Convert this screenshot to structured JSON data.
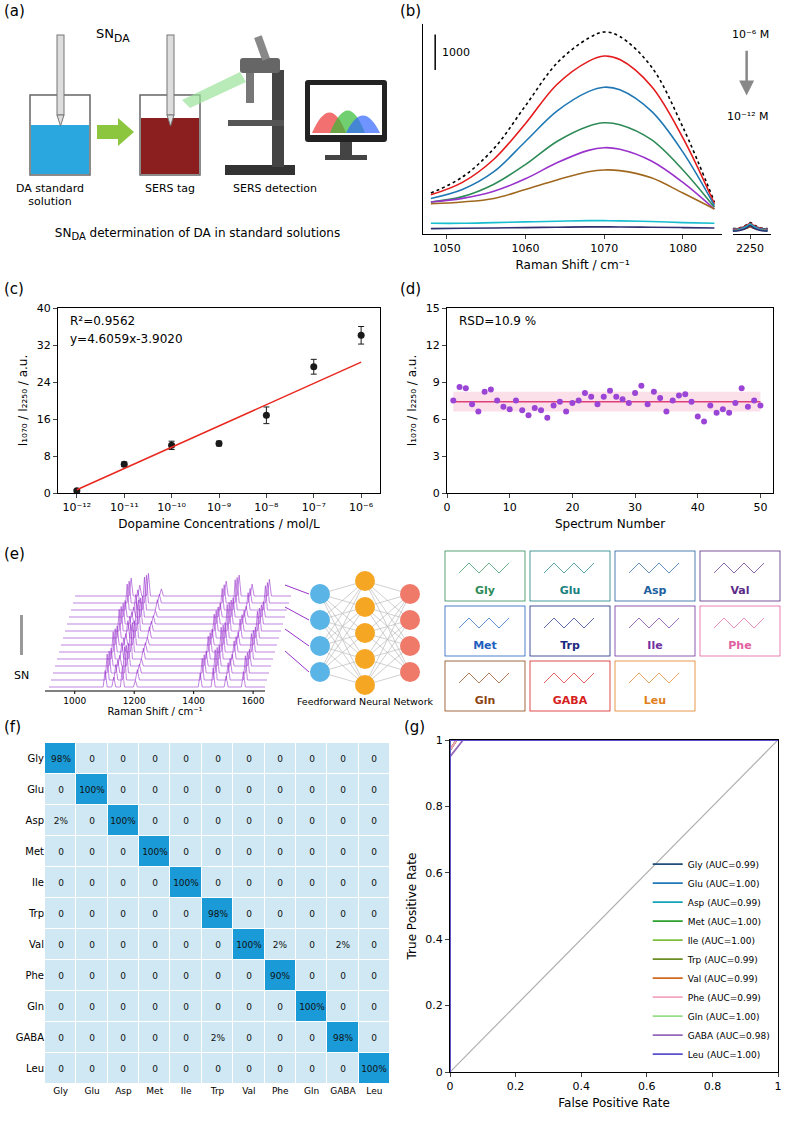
{
  "diagrams": {
    "a": {
      "panel_label": "(a)",
      "pipette_label": {
        "text": "SN",
        "sub": "DA"
      },
      "steps": [
        "DA standard solution",
        "SERS tag",
        "SERS detection"
      ],
      "caption": [
        {
          "text": "SN"
        },
        {
          "text": "DA",
          "sub": true
        },
        {
          "text": " determination of DA in standard solutions"
        }
      ]
    },
    "e": {
      "panel_label": "(e)",
      "left_label": "SN",
      "x_label": "Raman Shift / cm⁻¹",
      "xlim": [
        900,
        1640
      ],
      "xticks": [
        1000,
        1200,
        1400,
        1600
      ],
      "network_label": "Feedforward Neural Network",
      "classes": [
        {
          "name": "Gly",
          "color": "#2e8b57"
        },
        {
          "name": "Glu",
          "color": "#1a7f7f"
        },
        {
          "name": "Asp",
          "color": "#2060a0"
        },
        {
          "name": "Val",
          "color": "#5b2a86"
        },
        {
          "name": "Met",
          "color": "#1f5fbf"
        },
        {
          "name": "Trp",
          "color": "#1a2a80"
        },
        {
          "name": "Ile",
          "color": "#7030a0"
        },
        {
          "name": "Phe",
          "color": "#e060a0"
        },
        {
          "name": "Gln",
          "color": "#8b4513"
        },
        {
          "name": "GABA",
          "color": "#d62020"
        },
        {
          "name": "Leu",
          "color": "#e08020"
        }
      ]
    }
  },
  "chart_data": [
    {
      "panel_label": "(b)",
      "type": "line",
      "x_label": "Raman Shift / cm⁻¹",
      "tick_labels": "x",
      "xlim": [
        1047,
        1085
      ],
      "xticks": [
        1050,
        1060,
        1070,
        1080
      ],
      "x2lim": [
        2245,
        2256
      ],
      "x2ticks": [
        2250
      ],
      "ylim": [
        0,
        5900
      ],
      "scale_bar": {
        "value": 1000,
        "label": "1000"
      },
      "annotations": [
        "10⁻⁶ M",
        "10⁻¹² M"
      ],
      "series": [
        {
          "color": "#000000",
          "line_style": "dotted",
          "x": [
            1048,
            1052,
            1056,
            1060,
            1064,
            1068,
            1070,
            1072,
            1076,
            1080,
            1084,
            2245,
            2247,
            2249,
            2250,
            2251,
            2253,
            2255
          ],
          "values": [
            1150,
            1600,
            2400,
            3600,
            4800,
            5500,
            5675,
            5550,
            4700,
            3000,
            900,
            150,
            170,
            260,
            320,
            260,
            170,
            150
          ]
        },
        {
          "color": "#e41a1c",
          "line_style": "solid",
          "x": [
            1048,
            1052,
            1056,
            1060,
            1064,
            1068,
            1070,
            1072,
            1076,
            1080,
            1084,
            2245,
            2247,
            2249,
            2250,
            2251,
            2253,
            2255
          ],
          "values": [
            1100,
            1450,
            2100,
            3100,
            4200,
            4850,
            5000,
            4900,
            4150,
            2700,
            850,
            140,
            160,
            240,
            300,
            240,
            160,
            140
          ]
        },
        {
          "color": "#1f78b4",
          "line_style": "solid",
          "x": [
            1048,
            1052,
            1056,
            1060,
            1064,
            1068,
            1070,
            1072,
            1076,
            1080,
            1084,
            2245,
            2247,
            2249,
            2250,
            2251,
            2253,
            2255
          ],
          "values": [
            1000,
            1250,
            1750,
            2600,
            3450,
            4000,
            4125,
            4050,
            3450,
            2300,
            800,
            130,
            150,
            220,
            270,
            220,
            150,
            130
          ]
        },
        {
          "color": "#2e8b57",
          "line_style": "solid",
          "x": [
            1048,
            1052,
            1056,
            1060,
            1064,
            1068,
            1070,
            1072,
            1076,
            1080,
            1084,
            2245,
            2247,
            2249,
            2250,
            2251,
            2253,
            2255
          ],
          "values": [
            900,
            1050,
            1400,
            1950,
            2600,
            3030,
            3125,
            3070,
            2650,
            1800,
            750,
            120,
            140,
            200,
            250,
            200,
            140,
            120
          ]
        },
        {
          "color": "#9933cc",
          "line_style": "solid",
          "x": [
            1048,
            1052,
            1056,
            1060,
            1064,
            1068,
            1070,
            1072,
            1076,
            1080,
            1084,
            2245,
            2247,
            2249,
            2250,
            2251,
            2253,
            2255
          ],
          "values": [
            900,
            1000,
            1200,
            1550,
            2000,
            2350,
            2425,
            2380,
            2050,
            1450,
            700,
            110,
            130,
            180,
            220,
            180,
            130,
            110
          ]
        },
        {
          "color": "#a0681e",
          "line_style": "solid",
          "x": [
            1048,
            1052,
            1056,
            1060,
            1064,
            1068,
            1070,
            1072,
            1076,
            1080,
            1084,
            2245,
            2247,
            2249,
            2250,
            2251,
            2253,
            2255
          ],
          "values": [
            850,
            900,
            1000,
            1250,
            1520,
            1750,
            1800,
            1780,
            1580,
            1150,
            700,
            100,
            120,
            160,
            200,
            160,
            120,
            100
          ]
        },
        {
          "color": "#17becf",
          "line_style": "solid",
          "x": [
            1048,
            1052,
            1056,
            1060,
            1064,
            1068,
            1070,
            1072,
            1076,
            1080,
            1084,
            2245,
            2247,
            2249,
            2250,
            2251,
            2253,
            2255
          ],
          "values": [
            300,
            300,
            320,
            340,
            360,
            375,
            375,
            370,
            350,
            320,
            300,
            90,
            110,
            200,
            280,
            200,
            110,
            90
          ]
        },
        {
          "color": "#2f2f6f",
          "line_style": "solid",
          "x": [
            1048,
            1052,
            1056,
            1060,
            1064,
            1068,
            1070,
            1072,
            1076,
            1080,
            1084,
            2245,
            2247,
            2249,
            2250,
            2251,
            2253,
            2255
          ],
          "values": [
            150,
            160,
            170,
            180,
            190,
            200,
            200,
            198,
            190,
            180,
            170,
            80,
            100,
            170,
            240,
            170,
            100,
            80
          ]
        }
      ]
    },
    {
      "panel_label": "(c)",
      "type": "scatter",
      "log": "x",
      "x_label": "Dopamine Concentrations / mol/L",
      "y_label": "I₁₀₇₀ / I₂₂₅₀ / a.u.",
      "xlim": [
        4e-13,
        2.5e-06
      ],
      "xticks": [
        {
          "value": 1e-12,
          "label": "10⁻¹²"
        },
        {
          "value": 1e-11,
          "label": "10⁻¹¹"
        },
        {
          "value": 1e-10,
          "label": "10⁻¹⁰"
        },
        {
          "value": 1e-09,
          "label": "10⁻⁹"
        },
        {
          "value": 1e-08,
          "label": "10⁻⁸"
        },
        {
          "value": 1e-07,
          "label": "10⁻⁷"
        },
        {
          "value": 1e-06,
          "label": "10⁻⁶"
        }
      ],
      "ylim": [
        0,
        40
      ],
      "yticks": [
        0,
        8,
        16,
        24,
        32,
        40
      ],
      "annotations": [
        "R²=0.9562",
        "y=4.6059x-3.9020"
      ],
      "series": [
        {
          "type": "scatter",
          "color": "#1a1a1a",
          "marker": "circle",
          "x": [
            1e-12,
            1e-11,
            1e-10,
            1e-09,
            1e-08,
            1e-07,
            1e-06
          ],
          "values": [
            0.5,
            6.2,
            10.3,
            10.7,
            16.8,
            27.3,
            34.1
          ],
          "errors": [
            0.3,
            0.5,
            0.9,
            0.5,
            1.8,
            1.6,
            1.9
          ]
        },
        {
          "type": "line",
          "color": "#e8281e",
          "x": [
            1e-12,
            1e-06
          ],
          "values": [
            0.7,
            28.3
          ]
        }
      ]
    },
    {
      "panel_label": "(d)",
      "type": "scatter",
      "x_label": "Spectrum Number",
      "y_label": "I₁₀₇₀ / I₂₂₅₀ / a.u.",
      "xlim": [
        0,
        52
      ],
      "xticks": [
        0,
        10,
        20,
        30,
        40,
        50
      ],
      "ylim": [
        0,
        15
      ],
      "yticks": [
        0,
        3,
        6,
        9,
        12,
        15
      ],
      "annotations": [
        "RSD=10.9 %"
      ],
      "color": "#9b45d6",
      "marker": "circle",
      "x": [
        1,
        2,
        3,
        4,
        5,
        6,
        7,
        8,
        9,
        10,
        11,
        12,
        13,
        14,
        15,
        16,
        17,
        18,
        19,
        20,
        21,
        22,
        23,
        24,
        25,
        26,
        27,
        28,
        29,
        30,
        31,
        32,
        33,
        34,
        35,
        36,
        37,
        38,
        39,
        40,
        41,
        42,
        43,
        44,
        45,
        46,
        47,
        48,
        49,
        50
      ],
      "values": [
        7.5,
        8.6,
        8.5,
        7.2,
        6.6,
        8.2,
        8.4,
        7.5,
        7.0,
        6.8,
        7.5,
        6.7,
        6.3,
        6.9,
        6.7,
        6.1,
        7.1,
        7.4,
        6.6,
        7.3,
        7.5,
        8.1,
        7.8,
        7.2,
        7.8,
        8.3,
        7.8,
        7.6,
        7.3,
        8.1,
        8.7,
        7.2,
        8.2,
        7.7,
        6.6,
        7.5,
        7.9,
        8.0,
        7.4,
        6.2,
        5.8,
        7.1,
        6.5,
        6.8,
        6.5,
        7.3,
        8.5,
        7.0,
        7.5,
        7.1
      ],
      "mean": 7.4,
      "band": [
        6.6,
        8.2
      ]
    },
    {
      "panel_label": "(f)",
      "type": "heatmap",
      "data_labels": true,
      "categories": [
        "Gly",
        "Glu",
        "Asp",
        "Met",
        "Ile",
        "Trp",
        "Val",
        "Phe",
        "Gln",
        "GABA",
        "Leu"
      ],
      "zlim": [
        0,
        100
      ],
      "cells": [
        [
          98,
          0,
          0,
          0,
          0,
          0,
          0,
          0,
          0,
          0,
          0
        ],
        [
          0,
          100,
          0,
          0,
          0,
          0,
          0,
          0,
          0,
          0,
          0
        ],
        [
          2,
          0,
          100,
          0,
          0,
          0,
          0,
          0,
          0,
          0,
          0
        ],
        [
          0,
          0,
          0,
          100,
          0,
          0,
          0,
          0,
          0,
          0,
          0
        ],
        [
          0,
          0,
          0,
          0,
          100,
          0,
          0,
          0,
          0,
          0,
          0
        ],
        [
          0,
          0,
          0,
          0,
          0,
          98,
          0,
          0,
          0,
          0,
          0
        ],
        [
          0,
          0,
          0,
          0,
          0,
          0,
          100,
          2,
          0,
          2,
          0
        ],
        [
          0,
          0,
          0,
          0,
          0,
          0,
          0,
          90,
          0,
          0,
          0
        ],
        [
          0,
          0,
          0,
          0,
          0,
          0,
          0,
          0,
          100,
          0,
          0
        ],
        [
          0,
          0,
          0,
          0,
          0,
          2,
          0,
          0,
          0,
          98,
          0
        ],
        [
          0,
          0,
          0,
          0,
          0,
          0,
          0,
          0,
          0,
          0,
          100
        ]
      ],
      "cell_labels": [
        [
          "98%",
          "0",
          "0",
          "0",
          "0",
          "0",
          "0",
          "0",
          "0",
          "0",
          "0"
        ],
        [
          "0",
          "100%",
          "0",
          "0",
          "0",
          "0",
          "0",
          "0",
          "0",
          "0",
          "0"
        ],
        [
          "2%",
          "0",
          "100%",
          "0",
          "0",
          "0",
          "0",
          "0",
          "0",
          "0",
          "0"
        ],
        [
          "0",
          "0",
          "0",
          "100%",
          "0",
          "0",
          "0",
          "0",
          "0",
          "0",
          "0"
        ],
        [
          "0",
          "0",
          "0",
          "0",
          "100%",
          "0",
          "0",
          "0",
          "0",
          "0",
          "0"
        ],
        [
          "0",
          "0",
          "0",
          "0",
          "0",
          "98%",
          "0",
          "0",
          "0",
          "0",
          "0"
        ],
        [
          "0",
          "0",
          "0",
          "0",
          "0",
          "0",
          "100%",
          "2%",
          "0",
          "2%",
          "0"
        ],
        [
          "0",
          "0",
          "0",
          "0",
          "0",
          "0",
          "0",
          "90%",
          "0",
          "0",
          "0"
        ],
        [
          "0",
          "0",
          "0",
          "0",
          "0",
          "0",
          "0",
          "0",
          "100%",
          "0",
          "0"
        ],
        [
          "0",
          "0",
          "0",
          "0",
          "0",
          "2%",
          "0",
          "0",
          "0",
          "98%",
          "0"
        ],
        [
          "0",
          "0",
          "0",
          "0",
          "0",
          "0",
          "0",
          "0",
          "0",
          "0",
          "100%"
        ]
      ]
    },
    {
      "panel_label": "(g)",
      "type": "line",
      "x_label": "False Positive Rate",
      "y_label": "True Positive Rate",
      "xlim": [
        0,
        1
      ],
      "xticks": [
        0,
        0.2,
        0.4,
        0.6,
        0.8,
        1
      ],
      "ylim": [
        0,
        1
      ],
      "yticks": [
        0,
        0.2,
        0.4,
        0.6,
        0.8,
        1
      ],
      "legend": "bottom right",
      "diagonal": {
        "x": [
          0,
          1
        ],
        "values": [
          0,
          1
        ],
        "color": "#b0b0b0"
      },
      "series": [
        {
          "name": "Gly (AUC=0.99)",
          "color": "#1f4e79",
          "x": [
            0,
            0,
            0.02,
            1
          ],
          "values": [
            0,
            0.97,
            1,
            1
          ]
        },
        {
          "name": "Glu (AUC=1.00)",
          "color": "#1f77b4",
          "x": [
            0,
            0,
            1
          ],
          "values": [
            0,
            1,
            1
          ]
        },
        {
          "name": "Asp (AUC=0.99)",
          "color": "#17a2b8",
          "x": [
            0,
            0,
            0.02,
            1
          ],
          "values": [
            0,
            0.97,
            1,
            1
          ]
        },
        {
          "name": "Met (AUC=1.00)",
          "color": "#2ca02c",
          "x": [
            0,
            0,
            1
          ],
          "values": [
            0,
            1,
            1
          ]
        },
        {
          "name": "Ile (AUC=1.00)",
          "color": "#7fbf3f",
          "x": [
            0,
            0,
            1
          ],
          "values": [
            0,
            1,
            1
          ]
        },
        {
          "name": "Trp (AUC=0.99)",
          "color": "#6b8e23",
          "x": [
            0,
            0,
            0.02,
            1
          ],
          "values": [
            0,
            0.97,
            1,
            1
          ]
        },
        {
          "name": "Val (AUC=0.99)",
          "color": "#d2691e",
          "x": [
            0,
            0,
            0.02,
            1
          ],
          "values": [
            0,
            0.97,
            1,
            1
          ]
        },
        {
          "name": "Phe (AUC=0.99)",
          "color": "#f4a6c0",
          "x": [
            0,
            0,
            0.02,
            1
          ],
          "values": [
            0,
            0.97,
            1,
            1
          ]
        },
        {
          "name": "Gln (AUC=1.00)",
          "color": "#98df8a",
          "x": [
            0,
            0,
            1
          ],
          "values": [
            0,
            1,
            1
          ]
        },
        {
          "name": "GABA (AUC=0.98)",
          "color": "#9467bd",
          "x": [
            0,
            0,
            0.04,
            1
          ],
          "values": [
            0,
            0.95,
            1,
            1
          ]
        },
        {
          "name": "Leu (AUC=1.00)",
          "color": "#5a4fcf",
          "x": [
            0,
            0,
            1
          ],
          "values": [
            0,
            1,
            1
          ]
        }
      ]
    }
  ]
}
